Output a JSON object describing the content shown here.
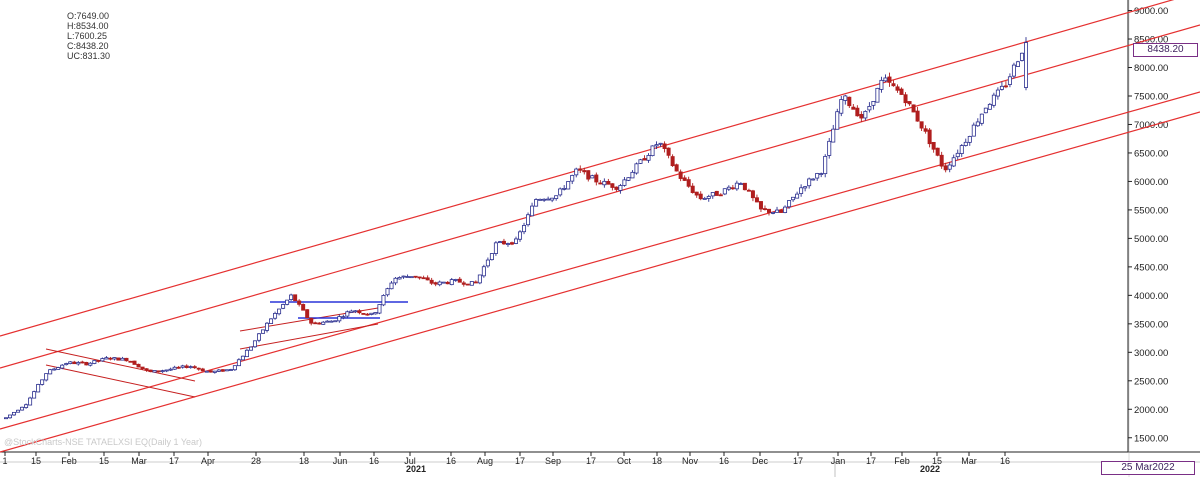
{
  "header": {
    "open": "O:7649.00",
    "high": "H:8534.00",
    "low": "L:7600.25",
    "close": "C:8438.20",
    "change": "UC:831.30"
  },
  "watermark": "@StockCharts-NSE TATAELXSI EQ(Daily 1 Year)",
  "last_price_tag": "8438.20",
  "last_date_tag": "25 Mar2022",
  "colors": {
    "up_candle": "#2b2f8f",
    "down_candle": "#b01e1e",
    "channel": "#e53030",
    "triangle_blue": "#2a35d8",
    "axis": "#222222"
  },
  "chart_data": {
    "type": "candlestick",
    "ylim": [
      1250,
      9150
    ],
    "y_ticks": [
      "1500.00",
      "2000.00",
      "2500.00",
      "3000.00",
      "3500.00",
      "4000.00",
      "4500.00",
      "5000.00",
      "5500.00",
      "6000.00",
      "6500.00",
      "7000.00",
      "7500.00",
      "8000.00",
      "8500.00",
      "9000.00"
    ],
    "x_ticks": [
      "1",
      "15",
      "Feb",
      "15",
      "Mar",
      "17",
      "Apr",
      "28",
      "18",
      "Jun",
      "16",
      "Jul",
      "16",
      "Aug",
      "17",
      "Sep",
      "17",
      "Oct",
      "18",
      "Nov",
      "16",
      "Dec",
      "17",
      "Jan",
      "17",
      "Feb",
      "15",
      "Mar",
      "16"
    ],
    "year_labels": [
      "2021",
      "2022"
    ],
    "price_path": [
      1850,
      2100,
      2650,
      2820,
      2800,
      2900,
      2870,
      2650,
      2700,
      2760,
      2650,
      2700,
      3100,
      3600,
      4000,
      3500,
      3550,
      3750,
      3650,
      4300,
      4350,
      4200,
      4250,
      4200,
      4900,
      4950,
      5700,
      5750,
      6200,
      6000,
      5900,
      6300,
      6700,
      6100,
      5700,
      5800,
      6000,
      5500,
      5450,
      5900,
      6200,
      7500,
      7100,
      7800,
      7500,
      6900,
      6200,
      6700,
      7300,
      7700,
      8450
    ],
    "last": {
      "open": 7649.0,
      "high": 8534.0,
      "low": 7600.25,
      "close": 8438.2,
      "change": 831.3
    }
  }
}
